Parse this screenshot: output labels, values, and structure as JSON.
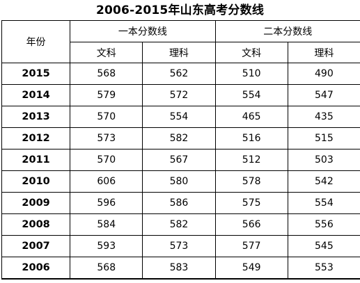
{
  "title": "2006-2015年山东高考分数线",
  "headers": {
    "year": "年份",
    "first_tier": "一本分数线",
    "second_tier": "二本分数线",
    "first_arts": "文科",
    "first_science": "理科",
    "second_arts": "文科",
    "second_science": "理科"
  },
  "rows": [
    {
      "year": "2015",
      "first_arts": "568",
      "first_science": "562",
      "second_arts": "510",
      "second_science": "490"
    },
    {
      "year": "2014",
      "first_arts": "579",
      "first_science": "572",
      "second_arts": "554",
      "second_science": "547"
    },
    {
      "year": "2013",
      "first_arts": "570",
      "first_science": "554",
      "second_arts": "465",
      "second_science": "435"
    },
    {
      "year": "2012",
      "first_arts": "573",
      "first_science": "582",
      "second_arts": "516",
      "second_science": "515"
    },
    {
      "year": "2011",
      "first_arts": "570",
      "first_science": "567",
      "second_arts": "512",
      "second_science": "503"
    },
    {
      "year": "2010",
      "first_arts": "606",
      "first_science": "580",
      "second_arts": "578",
      "second_science": "542"
    },
    {
      "year": "2009",
      "first_arts": "596",
      "first_science": "586",
      "second_arts": "575",
      "second_science": "554"
    },
    {
      "year": "2008",
      "first_arts": "584",
      "first_science": "582",
      "second_arts": "566",
      "second_science": "556"
    },
    {
      "year": "2007",
      "first_arts": "593",
      "first_science": "573",
      "second_arts": "577",
      "second_science": "545"
    },
    {
      "year": "2006",
      "first_arts": "568",
      "first_science": "583",
      "second_arts": "549",
      "second_science": "553"
    }
  ]
}
